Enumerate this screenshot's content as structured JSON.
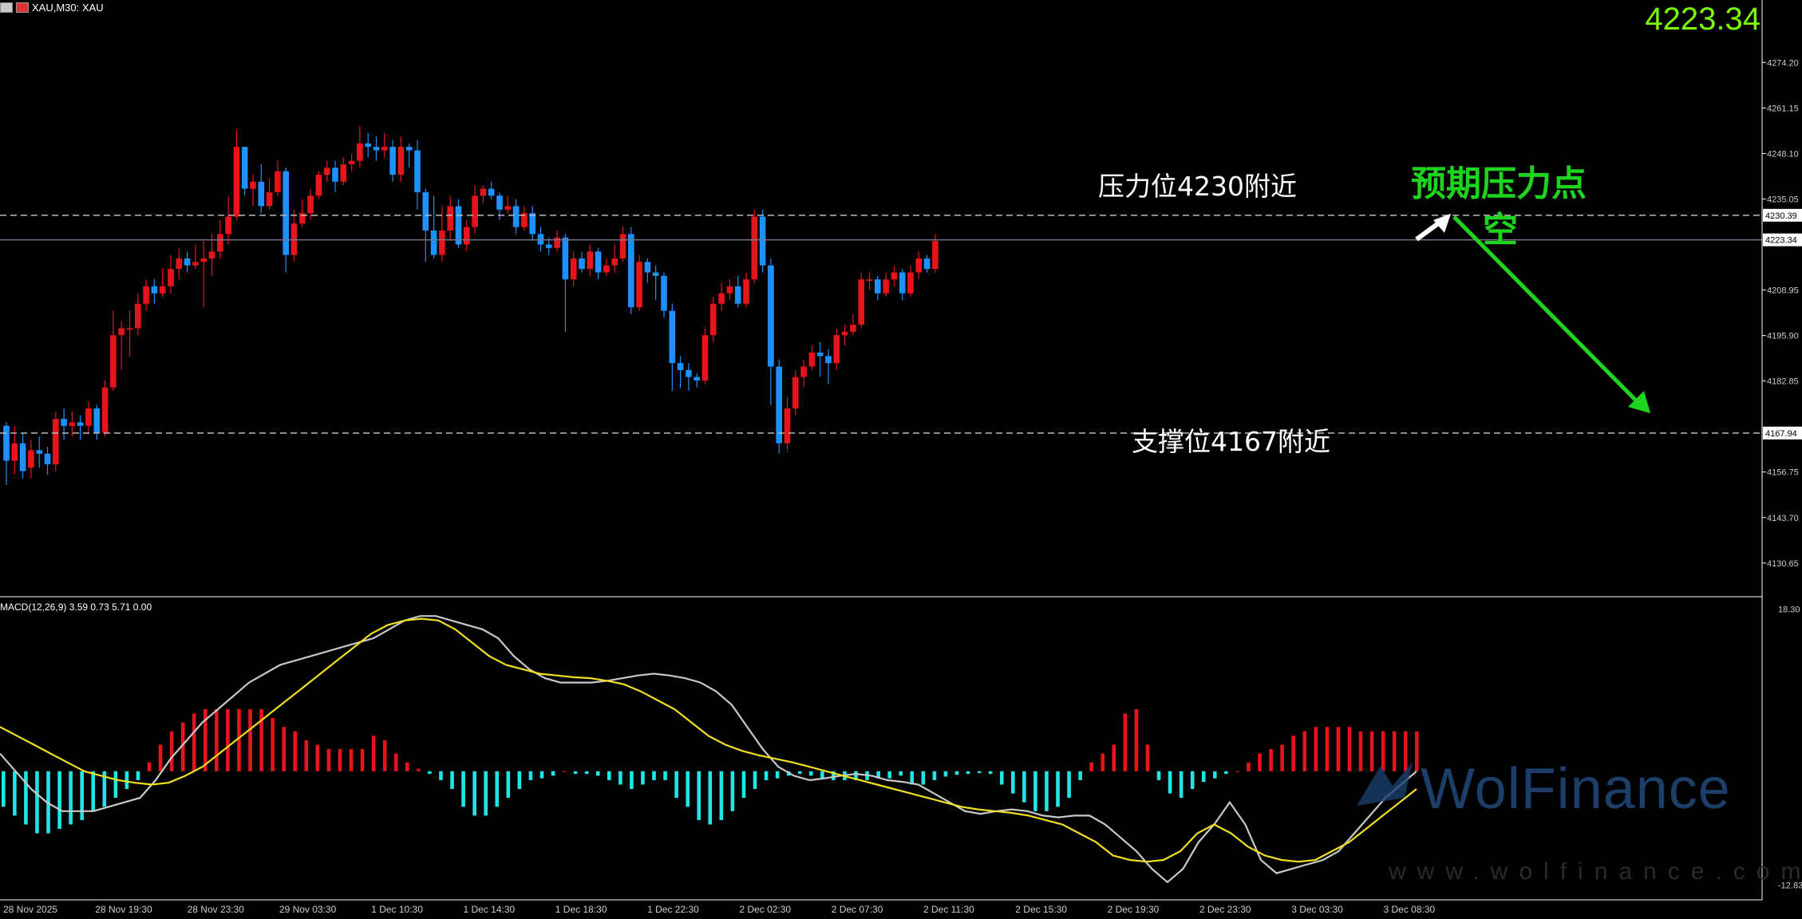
{
  "header": {
    "symbol_label": "XAU,M30:  XAU"
  },
  "current_price": "4223.34",
  "annotations": {
    "resistance": "压力位4230附近",
    "support": "支撑位4167附近",
    "expectation_line1": "预期压力点",
    "expectation_line2": "空"
  },
  "indicator_label": "MACD(12,26,9) 3.59 0.73 5.71 0.00",
  "watermark": {
    "brand": "WolFinance",
    "url": "www.wolfinance.com"
  },
  "colors": {
    "bull": "#e8141c",
    "bear": "#1e90ff",
    "histogram_pos": "#e8141c",
    "histogram_neg": "#1ee6e6",
    "macd_line": "#c8c8c8",
    "signal_line": "#f0e020",
    "arrow": "#1ed41e"
  },
  "chart_data": [
    {
      "type": "candlestick",
      "title": "XAU, M30",
      "yaxis_ticks": [
        "4274.20",
        "4261.15",
        "4248.10",
        "4235.05",
        "4208.95",
        "4195.90",
        "4182.85",
        "4156.75",
        "4143.70",
        "4130.65"
      ],
      "yaxis_markers": [
        "4230.39",
        "4223.34",
        "4167.94"
      ],
      "ylim": [
        4121,
        4288
      ],
      "xaxis_ticks": [
        "28 Nov 2025",
        "28 Nov 19:30",
        "28 Nov 23:30",
        "29 Nov 03:30",
        "1 Dec 10:30",
        "1 Dec 14:30",
        "1 Dec 18:30",
        "1 Dec 22:30",
        "2 Dec 02:30",
        "2 Dec 07:30",
        "2 Dec 11:30",
        "2 Dec 15:30",
        "2 Dec 19:30",
        "2 Dec 23:30",
        "3 Dec 03:30",
        "3 Dec 08:30"
      ],
      "levels": [
        {
          "name": "resistance",
          "value": 4230.39
        },
        {
          "name": "current",
          "value": 4223.34
        },
        {
          "name": "support",
          "value": 4167.94
        }
      ],
      "candles": [
        [
          4170,
          4160,
          4171,
          4153
        ],
        [
          4160,
          4165,
          4170,
          4156
        ],
        [
          4165,
          4157,
          4168,
          4155
        ],
        [
          4158,
          4163,
          4166,
          4155
        ],
        [
          4163,
          4162,
          4167,
          4158
        ],
        [
          4162,
          4159,
          4164,
          4156
        ],
        [
          4159,
          4172,
          4174,
          4157
        ],
        [
          4172,
          4170,
          4175,
          4166
        ],
        [
          4170,
          4171,
          4174,
          4167
        ],
        [
          4171,
          4170,
          4173,
          4166
        ],
        [
          4170,
          4175,
          4177,
          4168
        ],
        [
          4175,
          4168,
          4176,
          4166
        ],
        [
          4168,
          4181,
          4183,
          4167
        ],
        [
          4181,
          4196,
          4203,
          4180
        ],
        [
          4196,
          4198,
          4200,
          4186
        ],
        [
          4198,
          4198,
          4203,
          4190
        ],
        [
          4198,
          4205,
          4208,
          4196
        ],
        [
          4205,
          4210,
          4212,
          4203
        ],
        [
          4210,
          4208,
          4212,
          4205
        ],
        [
          4208,
          4210,
          4215,
          4207
        ],
        [
          4210,
          4215,
          4219,
          4208
        ],
        [
          4215,
          4218,
          4221,
          4212
        ],
        [
          4218,
          4216,
          4220,
          4214
        ],
        [
          4216,
          4217,
          4222,
          4215
        ],
        [
          4217,
          4218,
          4223,
          4204
        ],
        [
          4218,
          4220,
          4225,
          4213
        ],
        [
          4220,
          4225,
          4229,
          4218
        ],
        [
          4225,
          4230,
          4236,
          4222
        ],
        [
          4230,
          4250,
          4255,
          4229
        ],
        [
          4250,
          4238,
          4250,
          4236
        ],
        [
          4238,
          4240,
          4242,
          4233
        ],
        [
          4240,
          4233,
          4245,
          4231
        ],
        [
          4233,
          4237,
          4241,
          4232
        ],
        [
          4237,
          4243,
          4246,
          4236
        ],
        [
          4243,
          4219,
          4244,
          4214
        ],
        [
          4219,
          4228,
          4232,
          4217
        ],
        [
          4228,
          4231,
          4235,
          4227
        ],
        [
          4231,
          4236,
          4238,
          4229
        ],
        [
          4236,
          4242,
          4243,
          4235
        ],
        [
          4242,
          4244,
          4246,
          4240
        ],
        [
          4244,
          4240,
          4246,
          4237
        ],
        [
          4240,
          4245,
          4247,
          4239
        ],
        [
          4245,
          4246,
          4248,
          4243
        ],
        [
          4246,
          4251,
          4256,
          4244
        ],
        [
          4251,
          4250,
          4254,
          4247
        ],
        [
          4250,
          4249,
          4253,
          4246
        ],
        [
          4249,
          4250,
          4254,
          4247
        ],
        [
          4250,
          4242,
          4252,
          4240
        ],
        [
          4242,
          4250,
          4253,
          4240
        ],
        [
          4250,
          4249,
          4251,
          4244
        ],
        [
          4249,
          4237,
          4252,
          4232
        ],
        [
          4237,
          4226,
          4238,
          4217
        ],
        [
          4226,
          4219,
          4236,
          4218
        ],
        [
          4219,
          4226,
          4233,
          4217
        ],
        [
          4226,
          4233,
          4236,
          4223
        ],
        [
          4233,
          4222,
          4235,
          4221
        ],
        [
          4222,
          4227,
          4229,
          4220
        ],
        [
          4227,
          4236,
          4239,
          4225
        ],
        [
          4236,
          4238,
          4239,
          4234
        ],
        [
          4238,
          4236,
          4240,
          4235
        ],
        [
          4236,
          4232,
          4237,
          4229
        ],
        [
          4232,
          4233,
          4236,
          4231
        ],
        [
          4233,
          4227,
          4235,
          4225
        ],
        [
          4227,
          4231,
          4233,
          4226
        ],
        [
          4231,
          4225,
          4233,
          4223
        ],
        [
          4225,
          4222,
          4227,
          4220
        ],
        [
          4222,
          4221,
          4224,
          4219
        ],
        [
          4221,
          4224,
          4226,
          4220
        ],
        [
          4224,
          4212,
          4225,
          4197
        ],
        [
          4212,
          4218,
          4220,
          4210
        ],
        [
          4218,
          4215,
          4220,
          4214
        ],
        [
          4215,
          4220,
          4222,
          4213
        ],
        [
          4220,
          4214,
          4221,
          4212
        ],
        [
          4214,
          4216,
          4218,
          4213
        ],
        [
          4216,
          4218,
          4222,
          4214
        ],
        [
          4218,
          4225,
          4227,
          4217
        ],
        [
          4225,
          4204,
          4227,
          4202
        ],
        [
          4204,
          4217,
          4219,
          4203
        ],
        [
          4217,
          4214,
          4218,
          4211
        ],
        [
          4214,
          4213,
          4216,
          4206
        ],
        [
          4213,
          4203,
          4214,
          4201
        ],
        [
          4203,
          4188,
          4205,
          4180
        ],
        [
          4188,
          4186,
          4190,
          4181
        ],
        [
          4186,
          4184,
          4188,
          4180
        ],
        [
          4184,
          4183,
          4185,
          4181
        ],
        [
          4183,
          4196,
          4198,
          4182
        ],
        [
          4196,
          4205,
          4207,
          4194
        ],
        [
          4205,
          4208,
          4211,
          4203
        ],
        [
          4208,
          4210,
          4212,
          4206
        ],
        [
          4210,
          4205,
          4213,
          4204
        ],
        [
          4205,
          4212,
          4214,
          4204
        ],
        [
          4212,
          4230,
          4232,
          4211
        ],
        [
          4230,
          4216,
          4232,
          4214
        ],
        [
          4216,
          4187,
          4218,
          4176
        ],
        [
          4187,
          4165,
          4189,
          4162
        ],
        [
          4165,
          4175,
          4178,
          4163
        ],
        [
          4175,
          4184,
          4186,
          4173
        ],
        [
          4184,
          4187,
          4189,
          4181
        ],
        [
          4187,
          4191,
          4193,
          4186
        ],
        [
          4191,
          4190,
          4194,
          4184
        ],
        [
          4190,
          4188,
          4192,
          4182
        ],
        [
          4188,
          4196,
          4198,
          4186
        ],
        [
          4196,
          4197,
          4199,
          4193
        ],
        [
          4197,
          4199,
          4202,
          4196
        ],
        [
          4199,
          4212,
          4214,
          4198
        ],
        [
          4212,
          4212,
          4214,
          4209
        ],
        [
          4212,
          4208,
          4213,
          4206
        ],
        [
          4208,
          4212,
          4214,
          4207
        ],
        [
          4212,
          4214,
          4216,
          4210
        ],
        [
          4214,
          4208,
          4215,
          4206
        ],
        [
          4208,
          4214,
          4216,
          4207
        ],
        [
          4214,
          4218,
          4220,
          4212
        ],
        [
          4218,
          4215,
          4219,
          4214
        ],
        [
          4215,
          4223,
          4225,
          4214
        ]
      ]
    },
    {
      "type": "macd",
      "title": "MACD(12,26,9)",
      "yaxis_ticks": [
        "18.30",
        "-12.83"
      ],
      "ylim": [
        -14.5,
        19.5
      ],
      "histogram": [
        -4,
        -5,
        -6,
        -7,
        -7,
        -6.5,
        -6,
        -5.5,
        -4.5,
        -4,
        -3,
        -2,
        -1,
        1,
        3,
        4.5,
        5.5,
        6.5,
        7,
        7,
        7,
        7,
        7,
        7,
        6,
        5,
        4.5,
        3.5,
        3,
        2.5,
        2.5,
        2.5,
        2.5,
        4,
        3.5,
        2,
        1,
        0.3,
        -0.3,
        -1,
        -2,
        -4,
        -5,
        -5,
        -4,
        -3,
        -2,
        -1,
        -0.8,
        -0.5,
        0,
        -0.3,
        -0.3,
        -0.5,
        -1,
        -1.5,
        -2,
        -1.5,
        -1,
        -1,
        -3,
        -4,
        -5.5,
        -6,
        -5.5,
        -4.5,
        -3,
        -2,
        -1,
        -0.8,
        -0.5,
        -0.3,
        -0.5,
        -0.8,
        -1,
        -1,
        -1,
        -1,
        -0.8,
        -0.8,
        -0.5,
        -1.5,
        -1.5,
        -1,
        -0.6,
        -0.4,
        -0.3,
        -0.2,
        -0.3,
        -1.5,
        -2.5,
        -3.5,
        -4.5,
        -4.5,
        -4,
        -3,
        -1,
        1,
        2,
        3,
        6.5,
        7,
        3,
        -1,
        -2.5,
        -3,
        -2,
        -1.2,
        -0.8,
        -0.3,
        0,
        1,
        2,
        2.5,
        3,
        4,
        4.5,
        5,
        5,
        5,
        5,
        4.5,
        4.5,
        4.5,
        4.5,
        4.5,
        4.5
      ],
      "macd_line": [
        2,
        0,
        -2,
        -3.5,
        -4.5,
        -4.5,
        -4.5,
        -4,
        -3.5,
        -3,
        -1,
        1.5,
        3.5,
        5.5,
        7,
        8.5,
        10,
        11,
        12,
        12.5,
        13,
        13.5,
        14,
        14.5,
        15,
        16,
        17,
        17.5,
        17.5,
        17,
        16.5,
        16,
        15,
        13,
        11.5,
        10.5,
        10,
        10,
        10,
        10.2,
        10.5,
        10.8,
        11,
        10.8,
        10.5,
        10,
        9,
        7.5,
        5,
        2.5,
        0.5,
        -0.5,
        -1,
        -0.8,
        -0.5,
        -0.3,
        -0.5,
        -1,
        -1.2,
        -1.5,
        -2.5,
        -3.5,
        -4.5,
        -4.8,
        -4.5,
        -4.3,
        -4.5,
        -5,
        -5.2,
        -5,
        -5,
        -6,
        -7.5,
        -9,
        -11,
        -12.5,
        -11,
        -8,
        -6,
        -3.5,
        -6,
        -10,
        -11.5,
        -11,
        -10.5,
        -10,
        -9,
        -7,
        -5,
        -3,
        -1.5,
        0
      ],
      "signal_line": [
        5,
        4,
        3,
        2,
        1,
        0,
        -0.5,
        -1,
        -1.3,
        -1.5,
        -1.3,
        -0.5,
        0.5,
        2,
        3.5,
        5,
        6.5,
        8,
        9.5,
        11,
        12.5,
        14,
        15.5,
        16.5,
        17,
        17.2,
        17,
        16,
        14.5,
        13,
        12,
        11.5,
        11,
        10.8,
        10.6,
        10.5,
        10.2,
        9.8,
        9,
        8,
        7,
        5.5,
        4,
        3,
        2.3,
        1.8,
        1.4,
        1,
        0.5,
        0,
        -0.5,
        -1,
        -1.5,
        -2,
        -2.5,
        -3,
        -3.5,
        -4,
        -4.3,
        -4.5,
        -4.7,
        -5,
        -5.5,
        -6,
        -7,
        -8,
        -9.5,
        -10,
        -10.2,
        -10,
        -9,
        -7,
        -6,
        -7,
        -8.5,
        -9.5,
        -10,
        -10.2,
        -10,
        -9,
        -8,
        -6.5,
        -5,
        -3.5,
        -2
      ]
    }
  ]
}
